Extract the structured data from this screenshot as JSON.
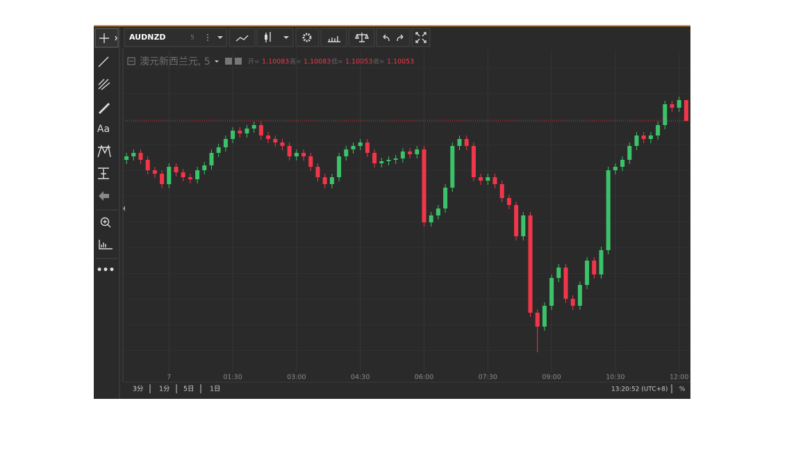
{
  "toolbar": {
    "symbol": "AUDNZD",
    "interval": "5"
  },
  "left_tools": {
    "text_tool": "Aa"
  },
  "legend": {
    "name": "澳元新西兰元, 5",
    "open_label": "开=",
    "high_label": "高=",
    "low_label": "低=",
    "close_label": "收="
  },
  "chart_data": {
    "type": "candlestick",
    "open": [
      1.09997,
      1.10002,
      1.10007,
      1.09997,
      1.09982,
      1.09977,
      1.09962,
      1.09987,
      1.09979,
      1.09972,
      1.09969,
      1.09982,
      1.09989,
      1.10007,
      1.10015,
      1.10027,
      1.10039,
      1.10035,
      1.10042,
      1.10047,
      1.10032,
      1.10027,
      1.10022,
      1.10017,
      1.10002,
      1.10007,
      1.10002,
      1.09987,
      1.09972,
      1.09962,
      1.09972,
      1.10002,
      1.10012,
      1.10017,
      1.10022,
      1.10007,
      1.09992,
      1.09995,
      1.09997,
      1.09999,
      1.10009,
      1.10005,
      1.10012,
      1.09907,
      1.09917,
      1.09927,
      1.09957,
      1.10017,
      1.10027,
      1.10017,
      1.09972,
      1.09967,
      1.09972,
      1.09962,
      1.09942,
      1.09932,
      1.09887,
      1.09917,
      1.09777,
      1.09757,
      1.09787,
      1.09827,
      1.09842,
      1.09797,
      1.09787,
      1.09817,
      1.09852,
      1.09832,
      1.09867,
      1.09982,
      1.09987,
      1.09997,
      1.10017,
      1.10032,
      1.10027,
      1.10032,
      1.10047,
      1.10077,
      1.10072,
      1.10083
    ],
    "high": [
      1.10007,
      1.10012,
      1.10012,
      1.10002,
      1.09987,
      1.09982,
      1.09992,
      1.09992,
      1.09984,
      1.09977,
      1.09987,
      1.09994,
      1.10012,
      1.1002,
      1.10032,
      1.10044,
      1.10044,
      1.10047,
      1.10052,
      1.10052,
      1.10037,
      1.10032,
      1.10027,
      1.10022,
      1.10012,
      1.10012,
      1.10007,
      1.09992,
      1.09977,
      1.09977,
      1.10007,
      1.10017,
      1.10022,
      1.10027,
      1.10027,
      1.10012,
      1.1,
      1.10002,
      1.10004,
      1.10014,
      1.10014,
      1.10017,
      1.10017,
      1.09922,
      1.09932,
      1.09962,
      1.10022,
      1.10032,
      1.10032,
      1.10022,
      1.09977,
      1.09977,
      1.09977,
      1.09967,
      1.09947,
      1.09937,
      1.09922,
      1.09922,
      1.09782,
      1.09792,
      1.09832,
      1.09847,
      1.09847,
      1.09802,
      1.09822,
      1.09857,
      1.09857,
      1.09872,
      1.09987,
      1.09992,
      1.10002,
      1.10022,
      1.10037,
      1.10037,
      1.10037,
      1.10052,
      1.10082,
      1.10082,
      1.10088,
      1.10083
    ],
    "low": [
      1.09991,
      1.09996,
      1.09991,
      1.09976,
      1.09971,
      1.09956,
      1.09956,
      1.09973,
      1.09966,
      1.09963,
      1.09963,
      1.09976,
      1.09983,
      1.10001,
      1.10009,
      1.10021,
      1.10029,
      1.10029,
      1.10036,
      1.10026,
      1.10021,
      1.10016,
      1.10011,
      1.09996,
      1.09996,
      1.09996,
      1.09981,
      1.09966,
      1.09956,
      1.09956,
      1.09966,
      1.09996,
      1.10006,
      1.10011,
      1.10001,
      1.09986,
      1.09986,
      1.09989,
      1.09991,
      1.09993,
      1.09999,
      1.09999,
      1.09901,
      1.09901,
      1.09911,
      1.09921,
      1.09951,
      1.10011,
      1.10011,
      1.09966,
      1.09961,
      1.09961,
      1.09956,
      1.09936,
      1.09926,
      1.09881,
      1.09881,
      1.09771,
      1.0972,
      1.09751,
      1.09781,
      1.09821,
      1.09791,
      1.09781,
      1.09781,
      1.09811,
      1.09826,
      1.09826,
      1.09861,
      1.09976,
      1.09981,
      1.09991,
      1.10011,
      1.10021,
      1.10021,
      1.10026,
      1.10041,
      1.10066,
      1.10066,
      1.10053
    ],
    "close": [
      1.10002,
      1.10007,
      1.09997,
      1.09982,
      1.09977,
      1.09962,
      1.09987,
      1.09979,
      1.09972,
      1.09969,
      1.09982,
      1.09989,
      1.10007,
      1.10015,
      1.10027,
      1.10039,
      1.10035,
      1.10042,
      1.10047,
      1.10032,
      1.10027,
      1.10022,
      1.10017,
      1.10002,
      1.10007,
      1.10002,
      1.09987,
      1.09972,
      1.09962,
      1.09972,
      1.10002,
      1.10012,
      1.10017,
      1.10022,
      1.10007,
      1.09992,
      1.09995,
      1.09997,
      1.09999,
      1.10009,
      1.10005,
      1.10012,
      1.09907,
      1.09917,
      1.09927,
      1.09957,
      1.10017,
      1.10027,
      1.10017,
      1.09972,
      1.09967,
      1.09972,
      1.09962,
      1.09942,
      1.09932,
      1.09887,
      1.09917,
      1.09777,
      1.09757,
      1.09787,
      1.09827,
      1.09842,
      1.09797,
      1.09787,
      1.09817,
      1.09852,
      1.09832,
      1.09867,
      1.09982,
      1.09987,
      1.09997,
      1.10017,
      1.10032,
      1.10027,
      1.10032,
      1.10047,
      1.10077,
      1.10072,
      1.10083,
      1.10053
    ],
    "up_color": "#3cc36a",
    "down_color": "#f2364a",
    "xlim": [
      -0.5,
      79.5
    ],
    "ylim": [
      1.09692,
      1.10155
    ],
    "xticks": [
      {
        "value": 6,
        "label": "7"
      },
      {
        "value": 15,
        "label": "01:30"
      },
      {
        "value": 24,
        "label": "03:00"
      },
      {
        "value": 33,
        "label": "04:30"
      },
      {
        "value": 42,
        "label": "06:00"
      },
      {
        "value": 51,
        "label": "07:30"
      },
      {
        "value": 60,
        "label": "09:00"
      },
      {
        "value": 69,
        "label": "10:30"
      },
      {
        "value": 78,
        "label": "12:00"
      }
    ],
    "grid": true,
    "price_line": true
  },
  "bottom_bar": {
    "ranges": [
      "3分",
      "1分",
      "5日",
      "1日"
    ],
    "clock": "13:20:52 (UTC+8)",
    "percent": "%"
  }
}
